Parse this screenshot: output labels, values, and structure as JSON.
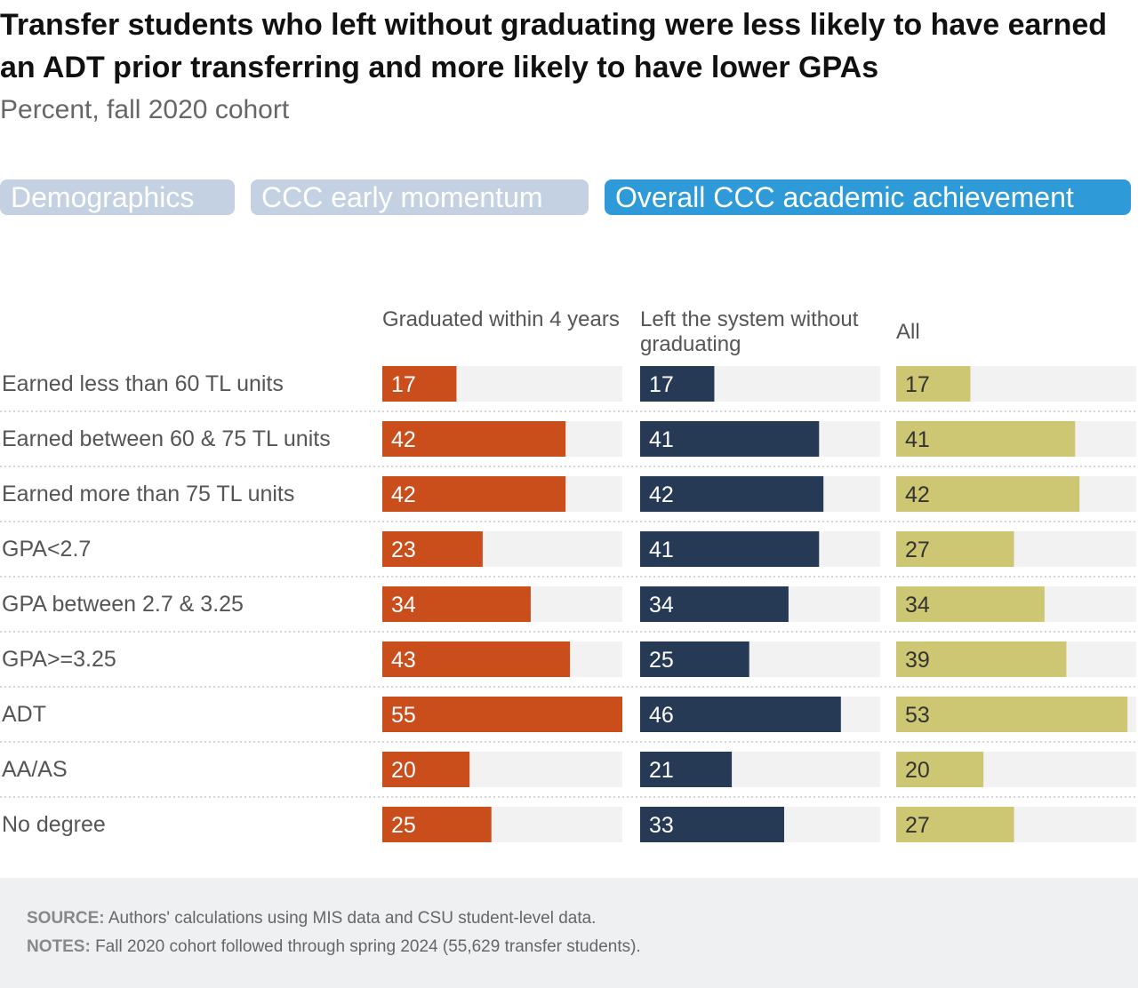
{
  "title": "Transfer students who left without graduating were less likely to have earned an ADT prior transferring and more likely to have lower GPAs",
  "subtitle": "Percent, fall 2020 cohort",
  "tabs": [
    {
      "label": "Demographics",
      "active": false
    },
    {
      "label": "CCC early momentum",
      "active": false
    },
    {
      "label": "Overall CCC academic achievement",
      "active": true
    }
  ],
  "colors": {
    "graduated": "#c94e1c",
    "left": "#263a56",
    "all": "#cdc774",
    "track": "#f2f2f2",
    "tab_active": "#2e9bd8",
    "tab_inactive": "#c4d1e3"
  },
  "chart_data": {
    "type": "bar",
    "orientation": "horizontal",
    "xlim": [
      0,
      55
    ],
    "categories": [
      "Earned less than 60 TL units",
      "Earned between 60 & 75 TL units",
      "Earned more than 75 TL units",
      "GPA<2.7",
      "GPA between 2.7 & 3.25",
      "GPA>=3.25",
      "ADT",
      "AA/AS",
      "No degree"
    ],
    "series": [
      {
        "name": "Graduated within 4 years",
        "values": [
          17,
          42,
          42,
          23,
          34,
          43,
          55,
          20,
          25
        ]
      },
      {
        "name": "Left the system without graduating",
        "values": [
          17,
          41,
          42,
          41,
          34,
          25,
          46,
          21,
          33
        ]
      },
      {
        "name": "All",
        "values": [
          17,
          41,
          42,
          27,
          34,
          39,
          53,
          20,
          27
        ]
      }
    ]
  },
  "footer": {
    "source_label": "SOURCE:",
    "source_text": "Authors' calculations using MIS data and CSU student-level data.",
    "notes_label": "NOTES:",
    "notes_text": "Fall 2020 cohort followed through spring 2024 (55,629 transfer students)."
  }
}
